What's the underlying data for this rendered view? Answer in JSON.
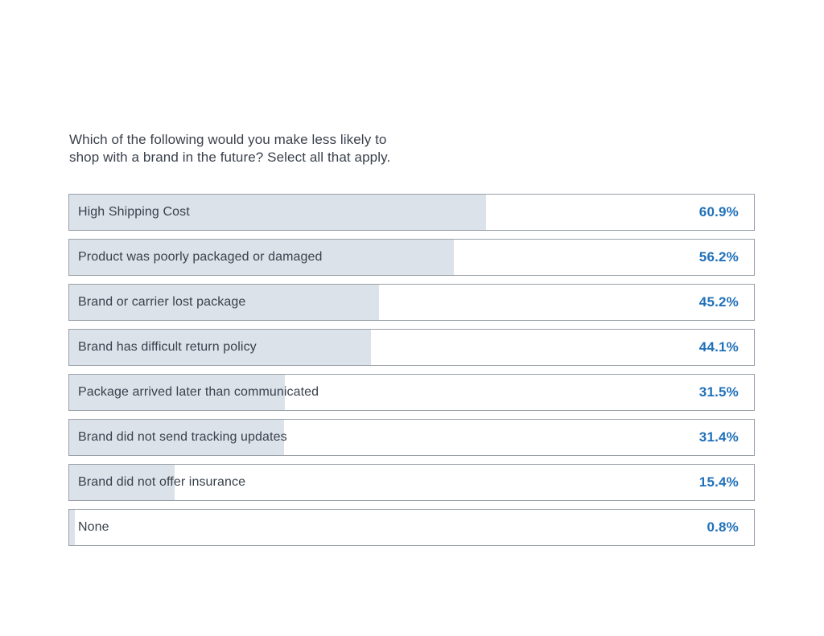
{
  "colors": {
    "background": "#ffffff",
    "bar_fill": "#dbe2ea",
    "bar_border": "#9aa1a9",
    "label_text": "#3a414c",
    "value_text": "#2171b9"
  },
  "chart": {
    "title_lines": [
      "Which of the following would you make less likely to",
      "shop with a brand in the future? Select all that apply."
    ]
  },
  "chart_data": {
    "type": "bar",
    "orientation": "horizontal",
    "title": "Which of the following would you make less likely to shop with a brand in the future? Select all that apply.",
    "categories": [
      "High Shipping Cost",
      "Product was poorly packaged or damaged",
      "Brand or carrier lost package",
      "Brand has difficult return policy",
      "Package arrived later than communicated",
      "Brand did not send tracking updates",
      "Brand did not offer insurance",
      "None"
    ],
    "values": [
      60.9,
      56.2,
      45.2,
      44.1,
      31.5,
      31.4,
      15.4,
      0.8
    ],
    "value_labels": [
      "60.9%",
      "56.2%",
      "45.2%",
      "44.1%",
      "31.5%",
      "31.4%",
      "15.4%",
      "0.8%"
    ],
    "value_format": "percent",
    "xlim": [
      0,
      100
    ],
    "grid": false,
    "legend": null,
    "value_label_position": "inside-right"
  }
}
